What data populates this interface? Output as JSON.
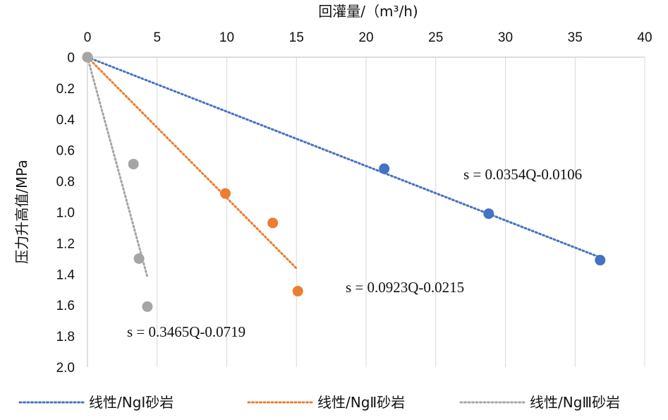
{
  "chart_data": {
    "type": "scatter",
    "x_title": "回灌量/（m³/h)",
    "y_title": "压力升高值/MPa",
    "x_axis_position": "top",
    "y_axis_inverted": true,
    "xlim": [
      0,
      40
    ],
    "ylim": [
      0,
      2.0
    ],
    "x_ticks": [
      "0",
      "5",
      "10",
      "15",
      "20",
      "25",
      "30",
      "35",
      "40"
    ],
    "y_ticks": [
      "0",
      "0.2",
      "0.4",
      "0.6",
      "0.8",
      "1.0",
      "1.2",
      "1.4",
      "1.6",
      "1.8",
      "2.0"
    ],
    "grid": "vertical",
    "legend_position": "bottom",
    "series": [
      {
        "name": "线性/NgⅠ砂岩",
        "color": "#4472C4",
        "points": [
          [
            0,
            0
          ],
          [
            21.3,
            0.72
          ],
          [
            28.8,
            1.01
          ],
          [
            36.8,
            1.31
          ]
        ],
        "trend": {
          "slope": 0.0354,
          "intercept": -0.0106,
          "x_range": [
            0,
            37
          ],
          "label": "s = 0.0354Q-0.0106"
        }
      },
      {
        "name": "线性/NgⅡ砂岩",
        "color": "#ED7D31",
        "points": [
          [
            0,
            0
          ],
          [
            9.9,
            0.88
          ],
          [
            13.3,
            1.07
          ],
          [
            15.1,
            1.51
          ]
        ],
        "trend": {
          "slope": 0.0923,
          "intercept": -0.0215,
          "x_range": [
            0,
            15
          ],
          "label": "s = 0.0923Q-0.0215"
        }
      },
      {
        "name": "线性/NgⅢ砂岩",
        "color": "#A5A5A5",
        "points": [
          [
            0,
            0
          ],
          [
            3.3,
            0.69
          ],
          [
            3.7,
            1.3
          ],
          [
            4.3,
            1.61
          ]
        ],
        "trend": {
          "slope": 0.3465,
          "intercept": -0.0719,
          "x_range": [
            0,
            4.3
          ],
          "label": "s = 0.3465Q-0.0719"
        }
      }
    ]
  }
}
